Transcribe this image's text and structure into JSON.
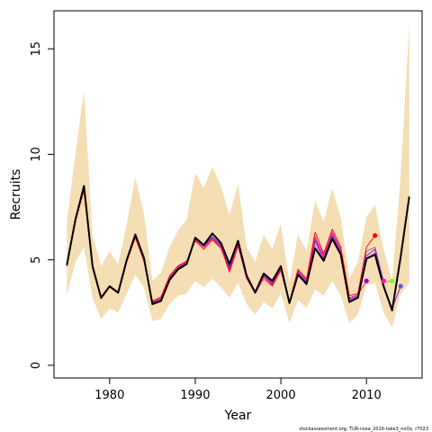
{
  "chart_data": {
    "type": "line",
    "xlabel": "Year",
    "ylabel": "Recruits",
    "footnote": "stockassessment.org, TUR-nsea_2016-take3_noOs, r7023",
    "xlim": [
      1973.5,
      2016.5
    ],
    "ylim": [
      -0.6,
      16.8
    ],
    "xticks": [
      1980,
      1990,
      2000,
      2010
    ],
    "yticks": [
      0,
      5,
      10,
      15
    ],
    "grid": false,
    "colors": {
      "band": "#f5deb3",
      "main": "#000000",
      "retro": [
        "#ff0000",
        "#ff1493",
        "#9400d3",
        "#6a5acd",
        "#ff69b4"
      ]
    },
    "band": {
      "x": [
        1975,
        1976,
        1977,
        1978,
        1979,
        1980,
        1981,
        1982,
        1983,
        1984,
        1985,
        1986,
        1987,
        1988,
        1989,
        1990,
        1991,
        1992,
        1993,
        1994,
        1995,
        1996,
        1997,
        1998,
        1999,
        2000,
        2001,
        2002,
        2003,
        2004,
        2005,
        2006,
        2007,
        2008,
        2009,
        2010,
        2011,
        2012,
        2013,
        2014,
        2015
      ],
      "lower": [
        3.3,
        4.9,
        5.6,
        3.2,
        2.2,
        2.7,
        2.5,
        3.4,
        4.3,
        3.7,
        2.1,
        2.2,
        2.9,
        3.3,
        3.4,
        4.0,
        3.7,
        4.1,
        3.7,
        3.2,
        3.9,
        2.9,
        2.4,
        3.0,
        2.7,
        3.4,
        2.0,
        3.1,
        2.7,
        3.6,
        3.3,
        4.0,
        3.3,
        2.0,
        2.4,
        3.8,
        3.9,
        2.5,
        1.8,
        3.4,
        3.9
      ],
      "upper": [
        6.8,
        10.0,
        13.0,
        6.2,
        4.7,
        5.4,
        4.8,
        6.7,
        8.9,
        7.2,
        4.0,
        4.4,
        5.6,
        6.4,
        6.9,
        9.1,
        8.4,
        9.4,
        8.5,
        7.1,
        8.6,
        5.6,
        4.9,
        6.2,
        5.5,
        6.7,
        3.9,
        6.2,
        5.4,
        7.8,
        6.8,
        8.4,
        7.0,
        4.1,
        4.9,
        7.0,
        7.6,
        5.5,
        4.0,
        9.0,
        16.2
      ]
    },
    "series": [
      {
        "x": [
          1975,
          1976,
          1977,
          1978,
          1979,
          1980,
          1981,
          1982,
          1983,
          1984,
          1985,
          1986,
          1987,
          1988,
          1989,
          1990,
          1991,
          1992,
          1993,
          1994,
          1995,
          1996,
          1997,
          1998,
          1999,
          2000,
          2001,
          2002,
          2003,
          2004,
          2005,
          2006,
          2007,
          2008,
          2009,
          2010,
          2011,
          2012,
          2013,
          2014,
          2015
        ],
        "values": [
          4.75,
          6.9,
          8.5,
          4.7,
          3.2,
          3.75,
          3.45,
          5.0,
          6.2,
          5.1,
          2.9,
          3.05,
          4.05,
          4.55,
          4.8,
          6.05,
          5.7,
          6.25,
          5.8,
          4.8,
          5.9,
          4.25,
          3.45,
          4.35,
          4.0,
          4.7,
          2.95,
          4.3,
          3.85,
          5.55,
          4.95,
          6.0,
          5.25,
          3.0,
          3.2,
          5.05,
          5.25,
          3.75,
          2.6,
          5.15,
          8.0
        ]
      },
      {
        "x": [
          1975,
          1976,
          1977,
          1978,
          1979,
          1980,
          1981,
          1982,
          1983,
          1984,
          1985,
          1986,
          1987,
          1988,
          1989,
          1990,
          1991,
          1992,
          1993,
          1994,
          1995,
          1996,
          1997,
          1998,
          1999,
          2000,
          2001,
          2002,
          2003,
          2004,
          2005,
          2006,
          2007,
          2008,
          2009,
          2010,
          2011
        ],
        "values": [
          4.7,
          6.8,
          8.3,
          4.6,
          3.15,
          3.7,
          3.4,
          4.9,
          6.05,
          4.95,
          3.0,
          3.2,
          4.2,
          4.7,
          4.9,
          5.9,
          5.5,
          5.95,
          5.55,
          4.5,
          5.7,
          4.2,
          3.5,
          4.2,
          3.8,
          4.55,
          3.0,
          4.55,
          4.1,
          6.3,
          5.3,
          6.45,
          5.6,
          3.3,
          3.4,
          5.6,
          6.15
        ]
      },
      {
        "x": [
          1975,
          1976,
          1977,
          1978,
          1979,
          1980,
          1981,
          1982,
          1983,
          1984,
          1985,
          1986,
          1987,
          1988,
          1989,
          1990,
          1991,
          1992,
          1993,
          1994,
          1995,
          1996,
          1997,
          1998,
          1999,
          2000,
          2001,
          2002,
          2003,
          2004,
          2005,
          2006,
          2007,
          2008,
          2009,
          2010
        ],
        "values": [
          4.72,
          6.82,
          8.35,
          4.62,
          3.17,
          3.72,
          3.42,
          4.92,
          6.08,
          4.98,
          3.05,
          3.25,
          4.25,
          4.72,
          4.95,
          5.95,
          5.6,
          6.0,
          5.6,
          4.4,
          5.65,
          4.1,
          3.4,
          4.1,
          3.75,
          4.5,
          2.95,
          4.5,
          4.0,
          6.1,
          5.2,
          6.3,
          5.5,
          3.2,
          3.35,
          4.0
        ]
      },
      {
        "x": [
          1975,
          1976,
          1977,
          1978,
          1979,
          1980,
          1981,
          1982,
          1983,
          1984,
          1985,
          1986,
          1987,
          1988,
          1989,
          1990,
          1991,
          1992,
          1993,
          1994,
          1995,
          1996,
          1997,
          1998,
          1999,
          2000,
          2001,
          2002,
          2003,
          2004,
          2005,
          2006,
          2007,
          2008,
          2009,
          2010,
          2011,
          2012,
          2013,
          2014
        ],
        "values": [
          4.73,
          6.85,
          8.4,
          4.65,
          3.18,
          3.73,
          3.43,
          4.95,
          6.12,
          5.02,
          2.95,
          3.1,
          4.1,
          4.6,
          4.85,
          6.0,
          5.65,
          6.1,
          5.7,
          4.65,
          5.8,
          4.2,
          3.42,
          4.3,
          3.9,
          4.65,
          2.95,
          4.4,
          3.95,
          5.9,
          5.05,
          6.15,
          5.35,
          3.1,
          3.25,
          5.2,
          5.5,
          3.8,
          2.7,
          3.75
        ]
      },
      {
        "x": [
          1975,
          1976,
          1977,
          1978,
          1979,
          1980,
          1981,
          1982,
          1983,
          1984,
          1985,
          1986,
          1987,
          1988,
          1989,
          1990,
          1991,
          1992,
          1993,
          1994,
          1995,
          1996,
          1997,
          1998,
          1999,
          2000,
          2001,
          2002,
          2003,
          2004,
          2005,
          2006,
          2007,
          2008,
          2009,
          2010,
          2011,
          2012
        ],
        "values": [
          4.71,
          6.83,
          8.38,
          4.63,
          3.16,
          3.71,
          3.41,
          4.93,
          6.1,
          5.0,
          2.98,
          3.15,
          4.15,
          4.65,
          4.88,
          6.0,
          5.6,
          6.05,
          5.65,
          4.55,
          5.75,
          4.15,
          3.45,
          4.25,
          3.85,
          4.6,
          2.98,
          4.45,
          4.05,
          6.0,
          5.15,
          6.25,
          5.45,
          3.15,
          3.3,
          5.4,
          5.6,
          4.0
        ]
      },
      {
        "x": [
          1975,
          1976,
          1977,
          1978,
          1979,
          1980,
          1981,
          1982,
          1983,
          1984,
          1985,
          1986,
          1987,
          1988,
          1989,
          1990,
          1991,
          1992,
          1993,
          1994,
          1995,
          1996,
          1997,
          1998,
          1999,
          2000,
          2001,
          2002,
          2003,
          2004,
          2005,
          2006,
          2007,
          2008,
          2009,
          2010,
          2011,
          2012,
          2013
        ],
        "values": [
          4.74,
          6.88,
          8.45,
          4.68,
          3.19,
          3.74,
          3.44,
          4.98,
          6.15,
          5.05,
          2.92,
          3.08,
          4.08,
          4.58,
          4.82,
          6.02,
          5.68,
          6.2,
          5.75,
          4.72,
          5.85,
          4.22,
          3.44,
          4.32,
          3.95,
          4.68,
          2.96,
          4.35,
          3.9,
          5.75,
          5.0,
          6.1,
          5.3,
          3.05,
          3.22,
          5.1,
          5.35,
          3.95,
          4.0
        ]
      }
    ],
    "terminal_points": [
      {
        "x": 2010,
        "y": 4.0,
        "color": "#9400d3"
      },
      {
        "x": 2011,
        "y": 6.15,
        "color": "#ff0000"
      },
      {
        "x": 2012,
        "y": 4.0,
        "color": "#ff1493"
      },
      {
        "x": 2013,
        "y": 4.0,
        "color": "#7cfc00"
      },
      {
        "x": 2014,
        "y": 3.75,
        "color": "#6a5acd"
      }
    ]
  }
}
